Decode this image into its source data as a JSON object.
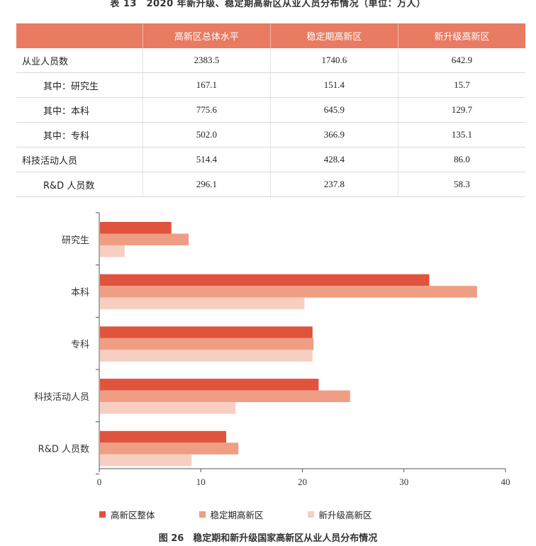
{
  "table": {
    "caption": "表 13　2020 年新升级、稳定期高新区从业人员分布情况（单位：万人）",
    "headers": [
      "",
      "高新区总体水平",
      "稳定期高新区",
      "新升级高新区"
    ],
    "rows": [
      {
        "label": "从业人员数",
        "values": [
          "2383.5",
          "1740.6",
          "642.9"
        ]
      },
      {
        "label": "其中：研究生",
        "values": [
          "167.1",
          "151.4",
          "15.7"
        ]
      },
      {
        "label": "其中：本科",
        "values": [
          "775.6",
          "645.9",
          "129.7"
        ]
      },
      {
        "label": "其中：专科",
        "values": [
          "502.0",
          "366.9",
          "135.1"
        ]
      },
      {
        "label": "科技活动人员",
        "values": [
          "514.4",
          "428.4",
          "86.0"
        ]
      },
      {
        "label": "R&D 人员数",
        "values": [
          "296.1",
          "237.8",
          "58.3"
        ]
      }
    ]
  },
  "figure_caption": "图 26　稳定期和新升级国家高新区从业人员分布情况",
  "colors": {
    "overall": "#e0533d",
    "stable": "#ef9e84",
    "new": "#f7cfc2",
    "header": "#e87b62"
  },
  "chart_data": {
    "type": "bar",
    "orientation": "horizontal",
    "categories": [
      "研究生",
      "本科",
      "专科",
      "科技活动人员",
      "R&D 人员数"
    ],
    "series": [
      {
        "name": "高新区整体",
        "values": [
          7.1,
          32.5,
          21.0,
          21.6,
          12.5
        ]
      },
      {
        "name": "稳定期高新区",
        "values": [
          8.8,
          37.2,
          21.1,
          24.7,
          13.7
        ]
      },
      {
        "name": "新升级高新区",
        "values": [
          2.5,
          20.2,
          21.0,
          13.4,
          9.1
        ]
      }
    ],
    "xlim": [
      0,
      40
    ],
    "xticks": [
      "0",
      "10",
      "20",
      "30",
      "40"
    ],
    "legend_position": "bottom",
    "grid": false
  }
}
